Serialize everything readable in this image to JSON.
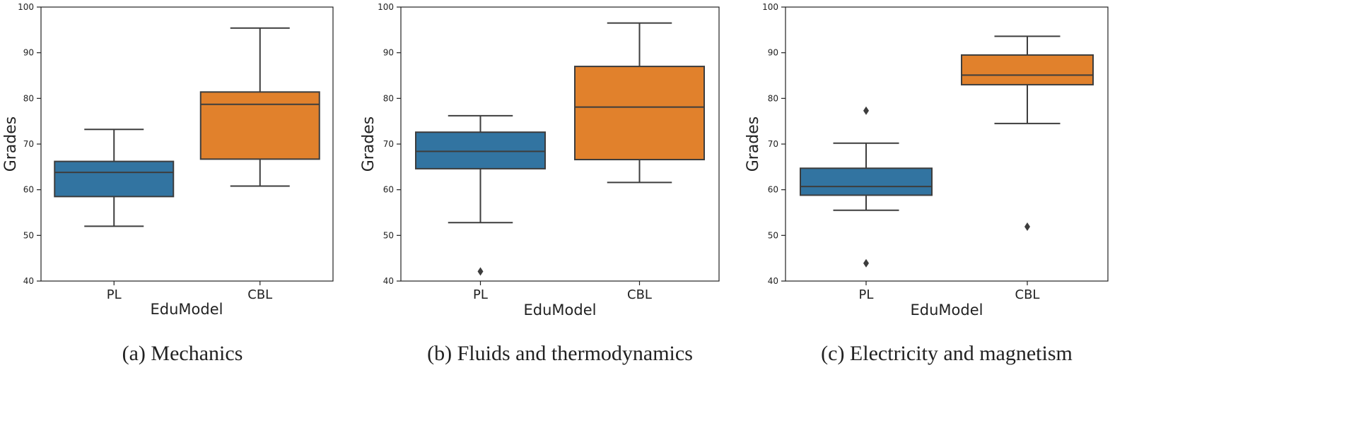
{
  "chart_data": [
    {
      "type": "box",
      "caption": "(a) Mechanics",
      "xlabel": "EduModel",
      "ylabel": "Grades",
      "ylim": [
        40,
        100
      ],
      "yticks": [
        40,
        50,
        60,
        70,
        80,
        90,
        100
      ],
      "categories": [
        "PL",
        "CBL"
      ],
      "boxes": [
        {
          "category": "PL",
          "color": "#3274a1",
          "whisker_low": 52,
          "q1": 58.5,
          "median": 63.8,
          "q3": 66.2,
          "whisker_high": 73.2,
          "outliers": []
        },
        {
          "category": "CBL",
          "color": "#e1812c",
          "whisker_low": 60.8,
          "q1": 66.7,
          "median": 78.7,
          "q3": 81.4,
          "whisker_high": 95.4,
          "outliers": []
        }
      ]
    },
    {
      "type": "box",
      "caption": "(b) Fluids and thermodynamics",
      "xlabel": "EduModel",
      "ylabel": "Grades",
      "ylim": [
        40,
        100
      ],
      "yticks": [
        40,
        50,
        60,
        70,
        80,
        90,
        100
      ],
      "categories": [
        "PL",
        "CBL"
      ],
      "boxes": [
        {
          "category": "PL",
          "color": "#3274a1",
          "whisker_low": 52.8,
          "q1": 64.6,
          "median": 68.4,
          "q3": 72.6,
          "whisker_high": 76.2,
          "outliers": [
            42.1
          ]
        },
        {
          "category": "CBL",
          "color": "#e1812c",
          "whisker_low": 61.6,
          "q1": 66.6,
          "median": 78.1,
          "q3": 87.0,
          "whisker_high": 96.5,
          "outliers": []
        }
      ]
    },
    {
      "type": "box",
      "caption": "(c) Electricity and magnetism",
      "xlabel": "EduModel",
      "ylabel": "Grades",
      "ylim": [
        40,
        100
      ],
      "yticks": [
        40,
        50,
        60,
        70,
        80,
        90,
        100
      ],
      "categories": [
        "PL",
        "CBL"
      ],
      "boxes": [
        {
          "category": "PL",
          "color": "#3274a1",
          "whisker_low": 55.5,
          "q1": 58.8,
          "median": 60.7,
          "q3": 64.7,
          "whisker_high": 70.2,
          "outliers": [
            77.3,
            43.9
          ]
        },
        {
          "category": "CBL",
          "color": "#e1812c",
          "whisker_low": 74.5,
          "q1": 83.0,
          "median": 85.1,
          "q3": 89.5,
          "whisker_high": 93.6,
          "outliers": [
            51.9
          ]
        }
      ]
    }
  ]
}
